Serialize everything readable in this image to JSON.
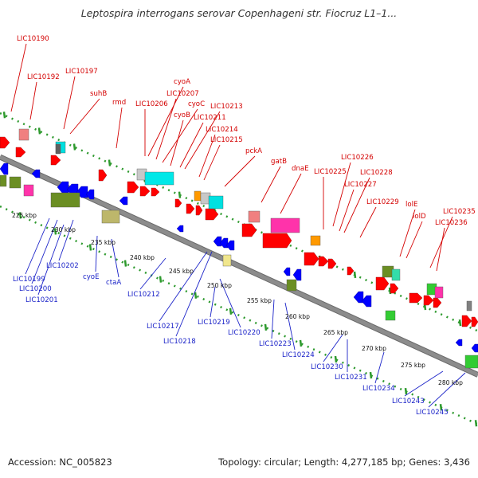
{
  "title": "Leptospira interrogans serovar Copenhageni str. Fiocruz L1–1...",
  "footer": {
    "accession": "Accession: NC_005823",
    "summary": "Topology: circular; Length: 4,277,185 bp; Genes: 3,436"
  },
  "colors": {
    "forward_label": "#d40000",
    "reverse_label": "#1a22c8",
    "backbone": "#8c8c8c",
    "dots": "#2e9a2e",
    "forward_arrow": "#ff0000",
    "reverse_arrow": "#0000ff"
  },
  "forward_genes": [
    "LIC10190",
    "LIC10192",
    "LIC10197",
    "suhB",
    "rmd",
    "cyoA",
    "LIC10207",
    "LIC10206",
    "cyoC",
    "cyoB",
    "LIC10213",
    "LIC10211",
    "LIC10214",
    "LIC10215",
    "pckA",
    "gatB",
    "dnaE",
    "LIC10226",
    "LIC10225",
    "LIC10228",
    "LIC10227",
    "LIC10229",
    "lolE",
    "lolD",
    "LIC10235",
    "LIC10236"
  ],
  "reverse_genes": [
    "LIC10199",
    "LIC10200",
    "LIC10201",
    "LIC10202",
    "cyoE",
    "ctaA",
    "LIC10212",
    "LIC10217",
    "LIC10218",
    "LIC10219",
    "LIC10220",
    "LIC10223",
    "LIC10224",
    "LIC10230",
    "LIC10231",
    "LIC10234",
    "LIC10243",
    "LIC10245"
  ],
  "scale_labels": [
    "225 kbp",
    "230 kbp",
    "235 kbp",
    "240 kbp",
    "245 kbp",
    "250 kbp",
    "255 kbp",
    "260 kbp",
    "265 kbp",
    "270 kbp",
    "275 kbp",
    "280 kbp"
  ]
}
